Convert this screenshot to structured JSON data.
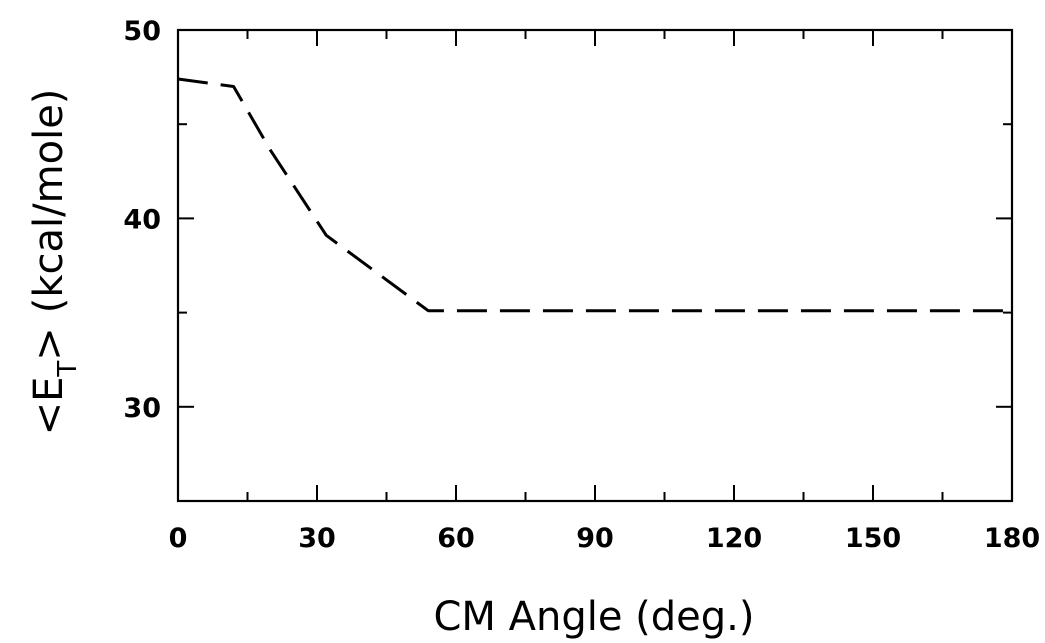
{
  "chart_data": {
    "type": "line",
    "title": "",
    "xlabel": "CM Angle (deg.)",
    "ylabel_parts": {
      "open": "<E",
      "sub": "T",
      "close": ">",
      "units": "(kcal/mole)"
    },
    "xlim": [
      0,
      180
    ],
    "ylim": [
      25,
      50
    ],
    "xticks": [
      0,
      30,
      60,
      90,
      120,
      150,
      180
    ],
    "xtick_labels": [
      "0",
      "30",
      "60",
      "90",
      "120",
      "150",
      "180"
    ],
    "yticks": [
      30,
      40,
      50
    ],
    "ytick_labels": [
      "30",
      "40",
      "50"
    ],
    "grid": false,
    "legend": "none",
    "series": [
      {
        "style": "dashed",
        "color": "#000000",
        "x": [
          0,
          12,
          20,
          32,
          54,
          180
        ],
        "y": [
          47.4,
          47.0,
          43.6,
          39.1,
          35.1,
          35.1
        ]
      }
    ]
  }
}
